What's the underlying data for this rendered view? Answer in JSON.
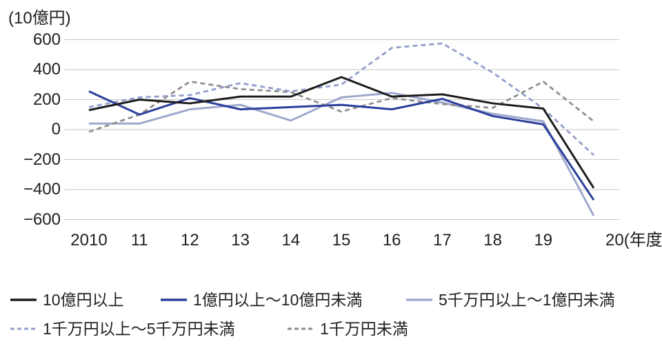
{
  "unit_label": "(10億円)",
  "chart_data": {
    "type": "line",
    "title": "",
    "ylabel_unit": "(10億円)",
    "x_suffix": "(年度)",
    "categories": [
      "2010",
      "11",
      "12",
      "13",
      "14",
      "15",
      "16",
      "17",
      "18",
      "19",
      "20"
    ],
    "ytick_labels": [
      "600",
      "400",
      "200",
      "0",
      "−200",
      "−400",
      "−600"
    ],
    "ytick_values": [
      600,
      400,
      200,
      0,
      -200,
      -400,
      -600
    ],
    "ylim": [
      -650,
      650
    ],
    "grid": true,
    "legend_position": "bottom",
    "series": [
      {
        "name": "10億円以上",
        "style": "solid",
        "color": "#1c1c1c",
        "values": [
          130,
          200,
          175,
          220,
          220,
          350,
          220,
          235,
          175,
          140,
          -390
        ]
      },
      {
        "name": "1億円以上〜10億円未満",
        "style": "solid",
        "color": "#2b3f9b",
        "values": [
          255,
          100,
          210,
          135,
          150,
          165,
          135,
          205,
          90,
          35,
          -470
        ]
      },
      {
        "name": "5千万円以上〜1億円未満",
        "style": "solid",
        "color": "#9fa8cd",
        "values": [
          40,
          40,
          135,
          165,
          60,
          215,
          245,
          180,
          105,
          55,
          -575
        ]
      },
      {
        "name": "1千万円以上〜5千万円未満",
        "style": "dashed",
        "color": "#939ecb",
        "values": [
          150,
          215,
          230,
          310,
          255,
          300,
          545,
          575,
          380,
          140,
          -170
        ]
      },
      {
        "name": "1千万円未満",
        "style": "dashed",
        "color": "#8e8e8e",
        "values": [
          -15,
          100,
          320,
          270,
          250,
          120,
          210,
          170,
          145,
          320,
          55
        ]
      }
    ]
  }
}
